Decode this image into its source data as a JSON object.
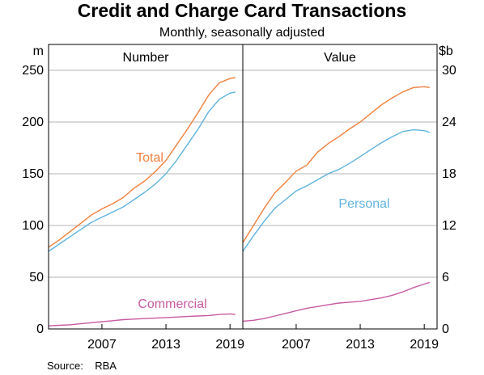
{
  "title": "Credit and Charge Card Transactions",
  "subtitle": "Monthly, seasonally adjusted",
  "source": "Source:    RBA",
  "colors": {
    "total": "#f0803c",
    "personal": "#5fb3e0",
    "commercial": "#c85aa3",
    "grid": "#b4b4b4",
    "axis": "#000000"
  },
  "chart_data": [
    {
      "type": "line",
      "panel_title": "Number",
      "unit_label": "m",
      "x_range": [
        2002.0,
        2020.2
      ],
      "ylim": [
        0,
        275
      ],
      "y_ticks": [
        0,
        50,
        100,
        150,
        200,
        250
      ],
      "x_ticks": [
        "2007",
        "2013",
        "2019"
      ],
      "x_tick_values": [
        2007,
        2013,
        2019
      ],
      "series": [
        {
          "name": "Total",
          "color_key": "total",
          "x": [
            2002.0,
            2003.0,
            2004.0,
            2005.0,
            2006.0,
            2007.0,
            2008.0,
            2009.0,
            2010.0,
            2011.0,
            2012.0,
            2013.0,
            2014.0,
            2015.0,
            2016.0,
            2017.0,
            2018.0,
            2019.0,
            2019.5
          ],
          "y": [
            79,
            86,
            94,
            102,
            110,
            116,
            121,
            127,
            136,
            143,
            152,
            163,
            178,
            193,
            209,
            226,
            238,
            242,
            243
          ]
        },
        {
          "name": "",
          "color_key": "personal",
          "x": [
            2002.0,
            2003.0,
            2004.0,
            2005.0,
            2006.0,
            2007.0,
            2008.0,
            2009.0,
            2010.0,
            2011.0,
            2012.0,
            2013.0,
            2014.0,
            2015.0,
            2016.0,
            2017.0,
            2018.0,
            2019.0,
            2019.5
          ],
          "y": [
            75,
            82,
            89,
            96,
            103,
            108,
            113,
            118,
            125,
            132,
            140,
            150,
            163,
            178,
            193,
            210,
            222,
            228,
            229
          ]
        },
        {
          "name": "Commercial",
          "color_key": "commercial",
          "x": [
            2002.0,
            2003.0,
            2004.0,
            2005.0,
            2006.0,
            2007.0,
            2008.0,
            2009.0,
            2010.0,
            2011.0,
            2012.0,
            2013.0,
            2014.0,
            2015.0,
            2016.0,
            2017.0,
            2018.0,
            2019.0,
            2019.5
          ],
          "y": [
            3.0,
            3.5,
            4.0,
            5.0,
            6.0,
            7.0,
            8.0,
            9.0,
            9.5,
            10.0,
            10.5,
            11.0,
            11.5,
            12.0,
            12.5,
            13.0,
            14.0,
            14.5,
            14.0
          ]
        }
      ]
    },
    {
      "type": "line",
      "panel_title": "Value",
      "unit_label": "$b",
      "x_range": [
        2002.0,
        2020.2
      ],
      "ylim": [
        0,
        33
      ],
      "y_ticks": [
        0,
        6,
        12,
        18,
        24,
        30
      ],
      "x_ticks": [
        "2007",
        "2013",
        "2019"
      ],
      "x_tick_values": [
        2007,
        2013,
        2019
      ],
      "series": [
        {
          "name": "",
          "color_key": "total",
          "x": [
            2002.0,
            2003.0,
            2004.0,
            2005.0,
            2006.0,
            2007.0,
            2008.0,
            2009.0,
            2010.0,
            2011.0,
            2012.0,
            2013.0,
            2014.0,
            2015.0,
            2016.0,
            2017.0,
            2018.0,
            2019.0,
            2019.5
          ],
          "y": [
            10.0,
            12.0,
            14.0,
            15.8,
            17.0,
            18.3,
            19.0,
            20.5,
            21.5,
            22.3,
            23.2,
            24.0,
            25.0,
            26.0,
            26.8,
            27.5,
            28.0,
            28.1,
            28.0
          ]
        },
        {
          "name": "Personal",
          "color_key": "personal",
          "x": [
            2002.0,
            2003.0,
            2004.0,
            2005.0,
            2006.0,
            2007.0,
            2008.0,
            2009.0,
            2010.0,
            2011.0,
            2012.0,
            2013.0,
            2014.0,
            2015.0,
            2016.0,
            2017.0,
            2018.0,
            2019.0,
            2019.5
          ],
          "y": [
            9.0,
            10.8,
            12.5,
            14.0,
            15.0,
            16.0,
            16.6,
            17.3,
            18.0,
            18.5,
            19.2,
            20.0,
            20.8,
            21.6,
            22.3,
            22.9,
            23.1,
            23.0,
            22.8
          ]
        },
        {
          "name": "",
          "color_key": "commercial",
          "x": [
            2002.0,
            2003.0,
            2004.0,
            2005.0,
            2006.0,
            2007.0,
            2008.0,
            2009.0,
            2010.0,
            2011.0,
            2012.0,
            2013.0,
            2014.0,
            2015.0,
            2016.0,
            2017.0,
            2018.0,
            2019.0,
            2019.5
          ],
          "y": [
            0.9,
            1.0,
            1.2,
            1.5,
            1.8,
            2.1,
            2.4,
            2.6,
            2.8,
            3.0,
            3.1,
            3.2,
            3.4,
            3.6,
            3.9,
            4.3,
            4.8,
            5.2,
            5.4
          ]
        }
      ]
    }
  ]
}
